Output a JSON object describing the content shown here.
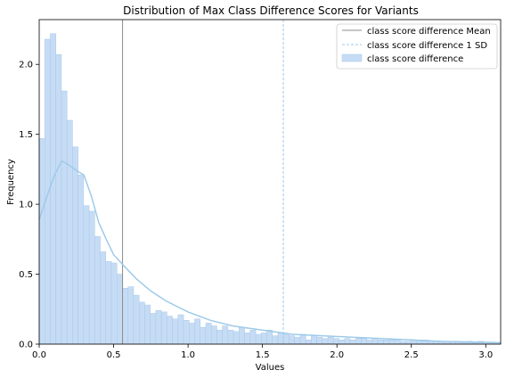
{
  "chart_data": {
    "type": "histogram",
    "title": "Distribution of Max Class Difference Scores for Variants",
    "xlabel": "Values",
    "ylabel": "Frequency",
    "xlim": [
      0,
      3.1
    ],
    "ylim": [
      0,
      2.32
    ],
    "xticks": [
      "0.0",
      "0.5",
      "1.0",
      "1.5",
      "2.0",
      "2.5",
      "3.0"
    ],
    "yticks": [
      "0.0",
      "0.5",
      "1.0",
      "1.5",
      "2.0"
    ],
    "grid": false,
    "legend_position": "top-right",
    "colors": {
      "bar_fill": "#c6dcf5",
      "bar_edge": "#a8c8ea",
      "kde": "#9ecae9",
      "mean_line": "#8c8c8c",
      "sd_line": "#9ecae9"
    },
    "legend": [
      {
        "label": "class score difference Mean",
        "style": "solid-gray-line"
      },
      {
        "label": "class score difference 1 SD",
        "style": "dashed-blue-line"
      },
      {
        "label": "class score difference",
        "style": "filled-patch"
      }
    ],
    "mean": 0.56,
    "sd_line": 1.64,
    "bins": {
      "start": 0.0,
      "width": 0.0373,
      "values": [
        1.47,
        2.18,
        2.22,
        2.07,
        1.81,
        1.6,
        1.41,
        1.21,
        0.99,
        0.95,
        0.77,
        0.66,
        0.59,
        0.58,
        0.5,
        0.4,
        0.41,
        0.35,
        0.3,
        0.28,
        0.22,
        0.24,
        0.23,
        0.2,
        0.18,
        0.21,
        0.17,
        0.15,
        0.18,
        0.12,
        0.15,
        0.13,
        0.1,
        0.13,
        0.1,
        0.09,
        0.12,
        0.08,
        0.1,
        0.07,
        0.08,
        0.1,
        0.06,
        0.08,
        0.07,
        0.06,
        0.05,
        0.07,
        0.03,
        0.06,
        0.05,
        0.04,
        0.05,
        0.04,
        0.03,
        0.04,
        0.03,
        0.04,
        0.04,
        0.03,
        0.04,
        0.03,
        0.03,
        0.03,
        0.03,
        0.02,
        0.02,
        0.03,
        0.02,
        0.03,
        0.02,
        0.02,
        0.02,
        0.01,
        0.02,
        0.02,
        0.01,
        0.02,
        0.01,
        0.02,
        0.01,
        0.01,
        0.01
      ]
    },
    "kde": {
      "x": [
        0.0,
        0.05,
        0.1,
        0.15,
        0.2,
        0.25,
        0.3,
        0.35,
        0.4,
        0.45,
        0.5,
        0.56,
        0.65,
        0.75,
        0.85,
        1.0,
        1.15,
        1.3,
        1.5,
        1.7,
        1.9,
        2.1,
        2.3,
        2.5,
        2.7,
        2.9,
        3.1
      ],
      "y": [
        0.89,
        1.05,
        1.2,
        1.31,
        1.28,
        1.24,
        1.21,
        1.06,
        0.87,
        0.75,
        0.64,
        0.57,
        0.47,
        0.38,
        0.31,
        0.23,
        0.17,
        0.13,
        0.1,
        0.07,
        0.06,
        0.05,
        0.04,
        0.03,
        0.02,
        0.015,
        0.01
      ]
    }
  }
}
